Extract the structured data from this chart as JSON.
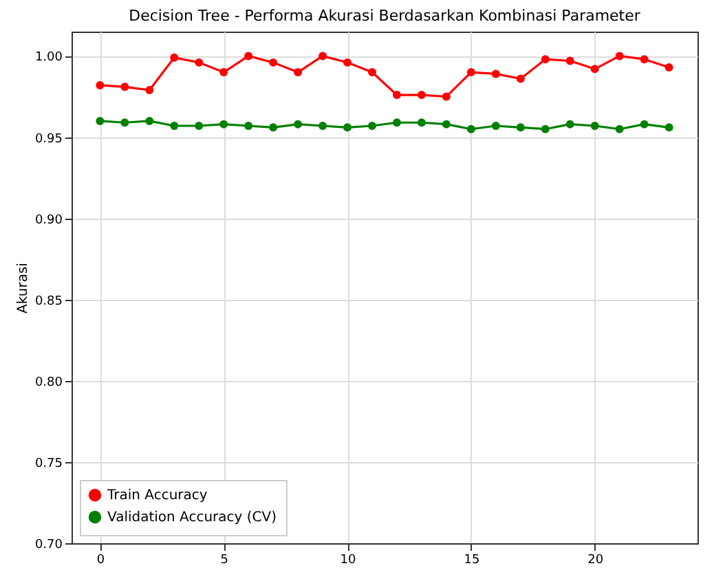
{
  "chart_data": {
    "type": "line",
    "title": "Decision Tree - Performa Akurasi Berdasarkan Kombinasi Parameter",
    "ylabel": "Akurasi",
    "x": [
      0,
      1,
      2,
      3,
      4,
      5,
      6,
      7,
      8,
      9,
      10,
      11,
      12,
      13,
      14,
      15,
      16,
      17,
      18,
      19,
      20,
      21,
      22,
      23
    ],
    "series": [
      {
        "name": "Train Accuracy",
        "color": "#ff0000",
        "values": [
          0.982,
          0.981,
          0.979,
          0.999,
          0.996,
          0.99,
          1.0,
          0.996,
          0.99,
          1.0,
          0.996,
          0.99,
          0.976,
          0.976,
          0.975,
          0.99,
          0.989,
          0.986,
          0.998,
          0.997,
          0.992,
          1.0,
          0.998,
          0.993
        ]
      },
      {
        "name": "Validation Accuracy (CV)",
        "color": "#008000",
        "values": [
          0.96,
          0.959,
          0.96,
          0.957,
          0.957,
          0.958,
          0.957,
          0.956,
          0.958,
          0.957,
          0.956,
          0.957,
          0.959,
          0.959,
          0.958,
          0.955,
          0.957,
          0.956,
          0.955,
          0.958,
          0.957,
          0.955,
          0.958,
          0.956
        ]
      }
    ],
    "xlim": [
      -1.15,
      24.15
    ],
    "xticks": [
      0,
      5,
      10,
      15,
      20
    ],
    "ylim": [
      0.7,
      1.015
    ],
    "yticks": [
      {
        "value": 0.7,
        "label": "0.70"
      },
      {
        "value": 0.75,
        "label": "0.75"
      },
      {
        "value": 0.8,
        "label": "0.80"
      },
      {
        "value": 0.85,
        "label": "0.85"
      },
      {
        "value": 0.9,
        "label": "0.90"
      },
      {
        "value": 0.95,
        "label": "0.95"
      },
      {
        "value": 1.0,
        "label": "1.00"
      }
    ],
    "grid": true,
    "legend": "bottom left",
    "marker": "circle",
    "line_style": "solid"
  }
}
